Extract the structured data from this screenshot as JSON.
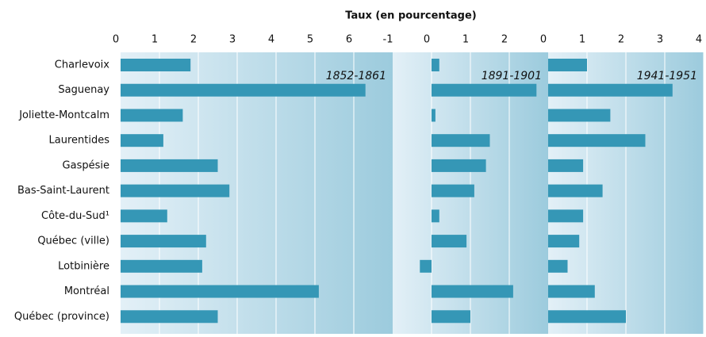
{
  "chart_data": {
    "type": "bar",
    "orientation": "horizontal",
    "x_label": "Taux (en pourcentage)",
    "color": "#3597b6",
    "grid": true,
    "categories": [
      "Charlevoix",
      "Saguenay",
      "Joliette-Montcalm",
      "Laurentides",
      "Gaspésie",
      "Bas-Saint-Laurent",
      "Côte-du-Sud¹",
      "Québec (ville)",
      "Lotbinière",
      "Montréal",
      "Québec (province)"
    ],
    "panels": [
      {
        "title": "1852-1861",
        "xlim": [
          0,
          7
        ],
        "xticks": [
          0,
          1,
          2,
          3,
          4,
          5,
          6
        ],
        "values": [
          1.8,
          6.3,
          1.6,
          1.1,
          2.5,
          2.8,
          1.2,
          2.2,
          2.1,
          5.1,
          2.5
        ]
      },
      {
        "title": "1891-1901",
        "xlim": [
          -1,
          3
        ],
        "xticks": [
          -1,
          0,
          1,
          2
        ],
        "values": [
          0.2,
          2.7,
          0.1,
          1.5,
          1.4,
          1.1,
          0.2,
          0.9,
          -0.3,
          2.1,
          1.0
        ]
      },
      {
        "title": "1941-1951",
        "xlim": [
          0,
          4
        ],
        "xticks": [
          0,
          1,
          2,
          3,
          4
        ],
        "values": [
          1.0,
          3.2,
          1.6,
          2.5,
          0.9,
          1.4,
          0.9,
          0.8,
          0.5,
          1.2,
          2.0
        ]
      }
    ]
  }
}
